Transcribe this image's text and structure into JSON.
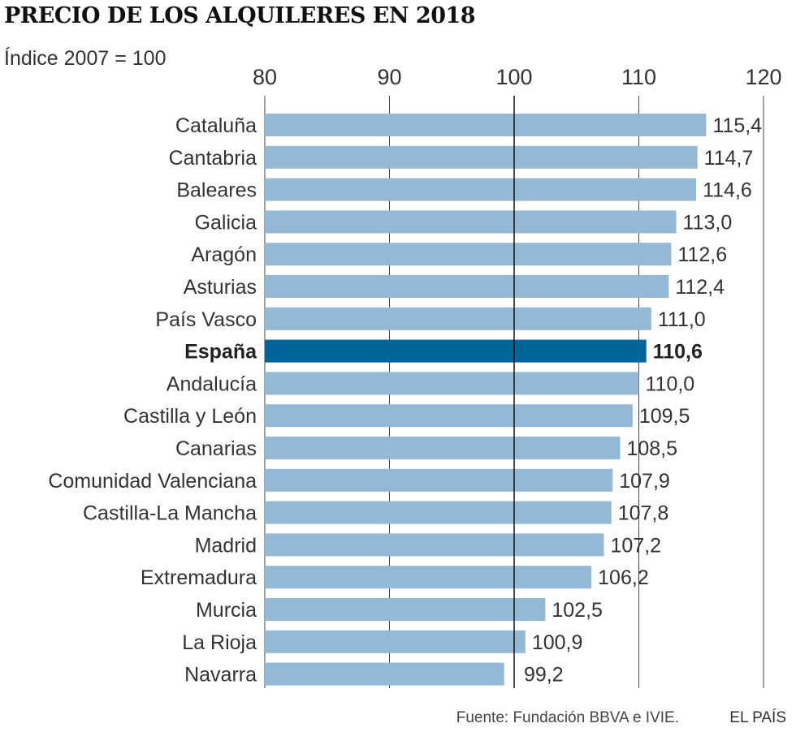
{
  "chart_data": {
    "type": "bar",
    "orientation": "horizontal",
    "title": "PRECIO DE LOS ALQUILERES EN 2018",
    "subtitle": "Índice 2007 = 100",
    "xlim": [
      80,
      120
    ],
    "ticks": [
      80,
      90,
      100,
      110,
      120
    ],
    "tick_labels": [
      "80",
      "90",
      "100",
      "110",
      "120"
    ],
    "reference_value": 100,
    "categories": [
      "Cataluña",
      "Cantabria",
      "Baleares",
      "Galicia",
      "Aragón",
      "Asturias",
      "País Vasco",
      "España",
      "Andalucía",
      "Castilla y León",
      "Canarias",
      "Comunidad Valenciana",
      "Castilla-La Mancha",
      "Madrid",
      "Extremadura",
      "Murcia",
      "La Rioja",
      "Navarra"
    ],
    "values": [
      115.4,
      114.7,
      114.6,
      113.0,
      112.6,
      112.4,
      111.0,
      110.6,
      110.0,
      109.5,
      108.5,
      107.9,
      107.8,
      107.2,
      106.2,
      102.5,
      100.9,
      99.2
    ],
    "value_labels": [
      "115,4",
      "114,7",
      "114,6",
      "113,0",
      "112,6",
      "112,4",
      "111,0",
      "110,6",
      "110,0",
      "109,5",
      "108,5",
      "107,9",
      "107,8",
      "107,2",
      "106,2",
      "102,5",
      "100,9",
      "99,2"
    ],
    "highlight_category": "España",
    "colors": {
      "bar": "#94b9d6",
      "highlight": "#006699",
      "grid": "#444444",
      "text": "#333333"
    },
    "source": "Fuente: Fundación BBVA e IVIE.",
    "brand": "EL PAÍS"
  }
}
